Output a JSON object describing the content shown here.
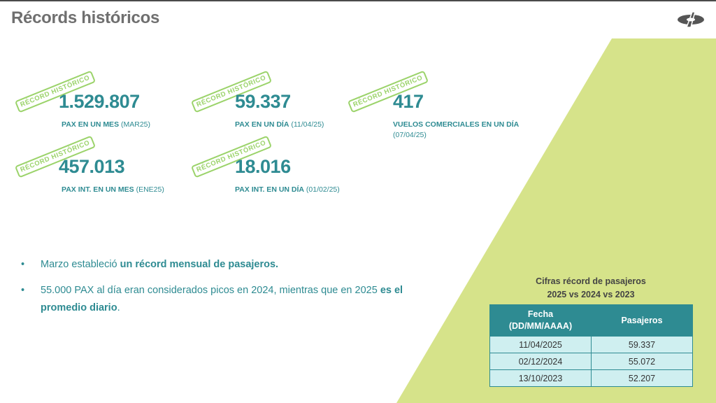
{
  "page": {
    "title": "Récords históricos"
  },
  "stamp_text": "RÉCORD HISTÓRICO",
  "records": [
    {
      "value": "1.529.807",
      "label": "PAX EN UN MES",
      "detail": "(MAR25)"
    },
    {
      "value": "59.337",
      "label": "PAX EN UN DÍA",
      "detail": "(11/04/25)"
    },
    {
      "value": "417",
      "label": "VUELOS COMERCIALES EN UN DÍA",
      "detail": "(07/04/25)"
    },
    {
      "value": "457.013",
      "label": "PAX INT. EN UN MES",
      "detail": "(ENE25)"
    },
    {
      "value": "18.016",
      "label": "PAX INT. EN UN DÍA",
      "detail": "(01/02/25)"
    }
  ],
  "bullets": [
    {
      "text": "Marzo estableció ",
      "bold": "un récord mensual de pasajeros.",
      "after": ""
    },
    {
      "text": "55.000 PAX al día eran considerados picos en 2024, mientras que en 2025 ",
      "bold": "es el promedio diario",
      "after": "."
    }
  ],
  "table": {
    "title_line1": "Cifras récord de pasajeros",
    "title_line2": "2025 vs 2024 vs 2023",
    "headers": {
      "date_line1": "Fecha",
      "date_line2": "(DD/MM/AAAA)",
      "pax": "Pasajeros"
    },
    "rows": [
      {
        "date": "11/04/2025",
        "pax": "59.337"
      },
      {
        "date": "02/12/2024",
        "pax": "55.072"
      },
      {
        "date": "13/10/2023",
        "pax": "52.207"
      }
    ]
  },
  "colors": {
    "accent": "#2e8b92",
    "stamp": "#9bd36a",
    "shape": "#d6e38a"
  }
}
